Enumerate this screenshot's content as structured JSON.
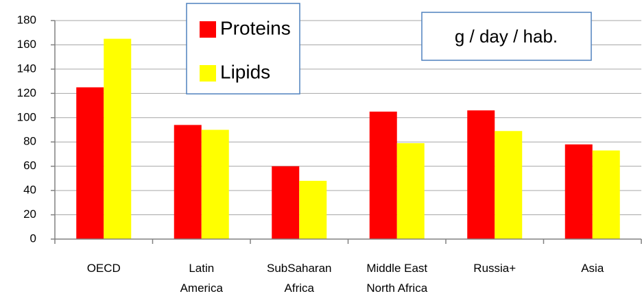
{
  "chart_data": {
    "type": "bar",
    "categories": [
      "OECD",
      "Latin\nAmerica",
      "SubSaharan\nAfrica",
      "Middle East\nNorth Africa",
      "Russia+",
      "Asia"
    ],
    "series": [
      {
        "name": "Proteins",
        "color": "#ff0000",
        "values": [
          125,
          94,
          60,
          105,
          106,
          78
        ]
      },
      {
        "name": "Lipids",
        "color": "#ffff00",
        "values": [
          165,
          90,
          48,
          79,
          89,
          73
        ]
      }
    ],
    "annotation": "g / day / hab.",
    "ylim": [
      0,
      180
    ],
    "yticks": [
      0,
      20,
      40,
      60,
      80,
      100,
      120,
      140,
      160,
      180
    ],
    "grid": true
  }
}
